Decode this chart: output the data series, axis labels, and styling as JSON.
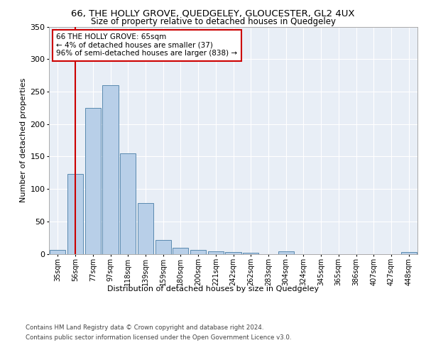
{
  "title1": "66, THE HOLLY GROVE, QUEDGELEY, GLOUCESTER, GL2 4UX",
  "title2": "Size of property relative to detached houses in Quedgeley",
  "xlabel": "Distribution of detached houses by size in Quedgeley",
  "ylabel": "Number of detached properties",
  "categories": [
    "35sqm",
    "56sqm",
    "77sqm",
    "97sqm",
    "118sqm",
    "139sqm",
    "159sqm",
    "180sqm",
    "200sqm",
    "221sqm",
    "242sqm",
    "262sqm",
    "283sqm",
    "304sqm",
    "324sqm",
    "345sqm",
    "365sqm",
    "386sqm",
    "407sqm",
    "427sqm",
    "448sqm"
  ],
  "values": [
    6,
    123,
    225,
    260,
    155,
    78,
    21,
    9,
    6,
    4,
    3,
    2,
    0,
    4,
    0,
    0,
    0,
    0,
    0,
    0,
    3
  ],
  "bar_color": "#b8cfe8",
  "bar_edge_color": "#5a8ab0",
  "vline_x": 1,
  "vline_color": "#cc0000",
  "annotation_line1": "66 THE HOLLY GROVE: 65sqm",
  "annotation_line2": "← 4% of detached houses are smaller (37)",
  "annotation_line3": "96% of semi-detached houses are larger (838) →",
  "annotation_box_color": "#cc0000",
  "annotation_bg": "#ffffff",
  "ylim": [
    0,
    350
  ],
  "yticks": [
    0,
    50,
    100,
    150,
    200,
    250,
    300,
    350
  ],
  "footer1": "Contains HM Land Registry data © Crown copyright and database right 2024.",
  "footer2": "Contains public sector information licensed under the Open Government Licence v3.0.",
  "plot_bg": "#e8eef6",
  "fig_bg": "#ffffff"
}
